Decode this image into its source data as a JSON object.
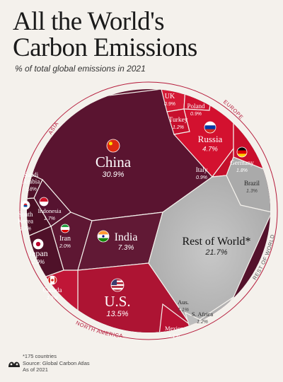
{
  "title": "All the World's Carbon Emissions",
  "title_lines": [
    "All the World's",
    "Carbon Emissions"
  ],
  "subtitle": "% of total global emissions in 2021",
  "footer": {
    "note": "*175 countries",
    "source": "Source: Global Carbon Atlas",
    "asof": "As of 2021"
  },
  "region_labels": {
    "asia": "ASIA",
    "europe": "EUROPE",
    "north_america": "NORTH AMERICA",
    "rest_of_world": "REST OF WORLD"
  },
  "colors": {
    "asia": "#5c1530",
    "europe": "#d0112f",
    "north_america": "#ad1433",
    "rest_of_world": "#b9b9b9",
    "background": "#f4f1ec"
  },
  "chart_data": {
    "type": "voronoi treemap",
    "unit": "% of total global emissions",
    "year": 2021,
    "series": [
      {
        "name": "ASIA",
        "items": [
          {
            "label": "China",
            "value": 30.9,
            "text": "30.9%",
            "flag": "china-flag-icon"
          },
          {
            "label": "India",
            "value": 7.3,
            "text": "7.3%",
            "flag": "india-flag-icon"
          },
          {
            "label": "Japan",
            "value": 2.9,
            "text": "2.9%",
            "flag": "japan-flag-icon"
          },
          {
            "label": "Iran",
            "value": 2.0,
            "text": "2.0%",
            "flag": "iran-flag-icon"
          },
          {
            "label": "Saudi Arabia",
            "value": 1.8,
            "text": "1.8%",
            "flag": ""
          },
          {
            "label": "Indonesia",
            "value": 1.7,
            "text": "1.7%",
            "flag": "indonesia-flag-icon"
          },
          {
            "label": "South Korea",
            "value": 1.7,
            "text": "1.7%",
            "flag": "south-korea-flag-icon"
          }
        ]
      },
      {
        "name": "EUROPE",
        "items": [
          {
            "label": "Russia",
            "value": 4.7,
            "text": "4.7%",
            "flag": "russia-flag-icon"
          },
          {
            "label": "Germany",
            "value": 1.8,
            "text": "1.8%",
            "flag": "germany-flag-icon"
          },
          {
            "label": "Turkey",
            "value": 1.2,
            "text": "1.2%",
            "flag": ""
          },
          {
            "label": "UK",
            "value": 0.9,
            "text": "0.9%",
            "flag": ""
          },
          {
            "label": "Poland",
            "value": 0.9,
            "text": "0.9%",
            "flag": ""
          },
          {
            "label": "Italy",
            "value": 0.9,
            "text": "0.9%",
            "flag": ""
          }
        ]
      },
      {
        "name": "NORTH AMERICA",
        "items": [
          {
            "label": "U.S.",
            "value": 13.5,
            "text": "13.5%",
            "flag": "us-flag-icon"
          },
          {
            "label": "Canada",
            "value": 1.5,
            "text": "1.5%",
            "flag": "canada-flag-icon"
          },
          {
            "label": "Mexico",
            "value": 1.1,
            "text": "1.1%",
            "flag": ""
          }
        ]
      },
      {
        "name": "REST OF WORLD",
        "items": [
          {
            "label": "Rest of World*",
            "value": 21.7,
            "text": "21.7%",
            "flag": ""
          },
          {
            "label": "Brazil",
            "value": 1.3,
            "text": "1.3%",
            "flag": ""
          },
          {
            "label": "Aus.",
            "value": 1.1,
            "text": "1.1%",
            "flag": ""
          },
          {
            "label": "S. Africa",
            "value": 1.2,
            "text": "1.2%",
            "flag": ""
          }
        ]
      }
    ]
  }
}
